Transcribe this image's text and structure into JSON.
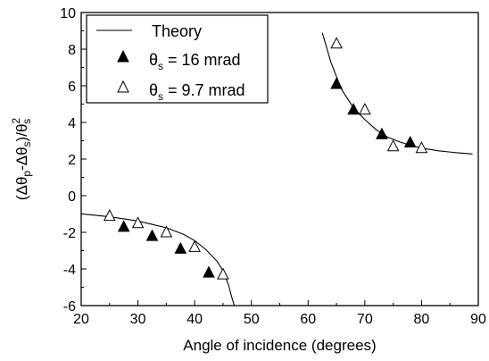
{
  "chart_data": {
    "type": "scatter",
    "title": "",
    "xlabel": "Angle of incidence (degrees)",
    "ylabel": "(Δθp-Δθs)/θs2",
    "xlim": [
      20,
      90
    ],
    "ylim": [
      -6,
      10
    ],
    "x_ticks": [
      20,
      30,
      40,
      50,
      60,
      70,
      80,
      90
    ],
    "y_ticks": [
      -6,
      -4,
      -2,
      0,
      2,
      4,
      6,
      8,
      10
    ],
    "grid": false,
    "legend_position": "top-left",
    "legend": {
      "theory": "Theory",
      "s1_prefix": "θ",
      "s1_sub": "s",
      "s1_rest": " = 16 mrad",
      "s2_prefix": "θ",
      "s2_sub": "s",
      "s2_rest": " = 9.7 mrad"
    },
    "series": [
      {
        "name": "θs = 16 mrad",
        "marker": "filled-triangle",
        "points": [
          [
            27.5,
            -1.7
          ],
          [
            32.5,
            -2.2
          ],
          [
            37.5,
            -2.9
          ],
          [
            42.5,
            -4.2
          ],
          [
            65,
            6.1
          ],
          [
            68,
            4.7
          ],
          [
            73,
            3.35
          ],
          [
            78,
            2.9
          ]
        ]
      },
      {
        "name": "θs = 9.7 mrad",
        "marker": "open-triangle",
        "points": [
          [
            25,
            -1.1
          ],
          [
            30,
            -1.5
          ],
          [
            35,
            -2.0
          ],
          [
            40,
            -2.8
          ],
          [
            45,
            -4.3
          ],
          [
            65,
            8.3
          ],
          [
            70,
            4.7
          ],
          [
            75,
            2.7
          ],
          [
            80,
            2.6
          ]
        ]
      }
    ],
    "theory_curves": [
      {
        "name": "Theory",
        "points": [
          [
            20,
            -0.99
          ],
          [
            25,
            -1.15
          ],
          [
            30,
            -1.38
          ],
          [
            35,
            -1.75
          ],
          [
            38,
            -2.1
          ],
          [
            40,
            -2.45
          ],
          [
            42,
            -2.95
          ],
          [
            44,
            -3.6
          ],
          [
            45,
            -4.1
          ],
          [
            46,
            -4.9
          ],
          [
            46.5,
            -5.5
          ],
          [
            47,
            -6.0
          ]
        ]
      },
      {
        "name": "Theory",
        "points": [
          [
            62.5,
            8.9
          ],
          [
            64,
            7.3
          ],
          [
            65,
            6.5
          ],
          [
            66,
            5.75
          ],
          [
            68,
            4.8
          ],
          [
            70,
            4.15
          ],
          [
            72,
            3.6
          ],
          [
            74,
            3.2
          ],
          [
            76,
            2.95
          ],
          [
            78,
            2.75
          ],
          [
            80,
            2.6
          ],
          [
            83,
            2.45
          ],
          [
            86,
            2.35
          ],
          [
            89,
            2.28
          ]
        ]
      }
    ]
  }
}
